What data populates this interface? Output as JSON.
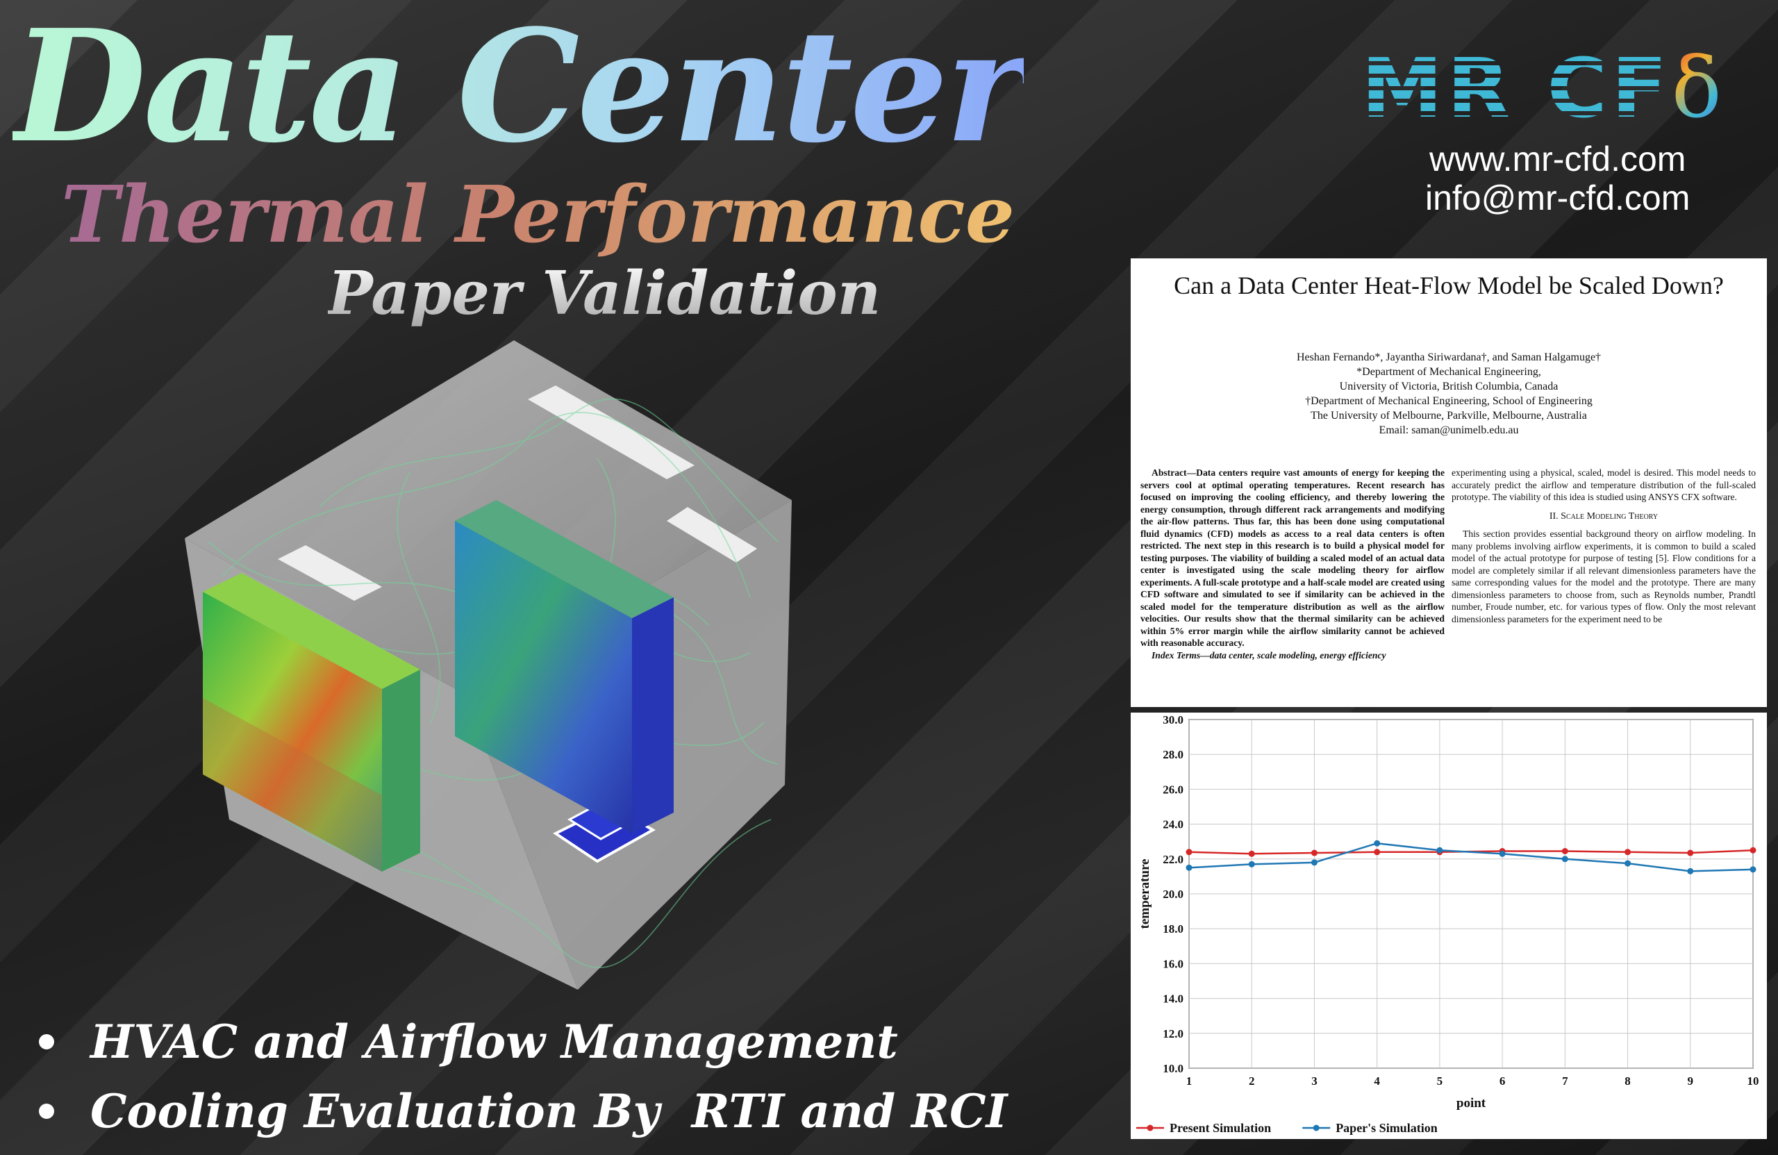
{
  "title": {
    "main": "Data Center",
    "sub": "Thermal Performance",
    "third": "Paper Validation"
  },
  "brand": {
    "logo_text": "MR CF",
    "logo_symbol": "δ",
    "website": "www.mr-cfd.com",
    "email": "info@mr-cfd.com"
  },
  "paper": {
    "title": "Can a Data Center Heat-Flow Model be Scaled Down?",
    "authors": "Heshan Fernando*, Jayantha Siriwardana†, and Saman Halgamuge†",
    "affil1": "*Department of Mechanical Engineering,",
    "affil2": "University of Victoria, British Columbia, Canada",
    "affil3": "†Department of Mechanical Engineering, School of Engineering",
    "affil4": "The University of Melbourne, Parkville, Melbourne, Australia",
    "email": "Email: saman@unimelb.edu.au",
    "abstract": "Abstract—Data centers require vast amounts of energy for keeping the servers cool at optimal operating temperatures. Recent research has focused on improving the cooling efficiency, and thereby lowering the energy consumption, through different rack arrangements and modifying the air-flow patterns. Thus far, this has been done using computational fluid dynamics (CFD) models as access to a real data centers is often restricted. The next step in this research is to build a physical model for testing purposes. The viability of building a scaled model of an actual data center is investigated using the scale modeling theory for airflow experiments. A full-scale prototype and a half-scale model are created using CFD software and simulated to see if similarity can be achieved in the scaled model for the temperature distribution as well as the airflow velocities. Our results show that the thermal similarity can be achieved within 5% error margin while the airflow similarity cannot be achieved with reasonable accuracy.",
    "index_terms": "Index Terms—data center, scale modeling, energy efficiency",
    "right_intro": "experimenting using a physical, scaled, model is desired. This model needs to accurately predict the airflow and temperature distribution of the full-scaled prototype. The viability of this idea is studied using ANSYS CFX software.",
    "section_heading": "II. Scale Modeling Theory",
    "section_body": "This section provides essential background theory on airflow modeling. In many problems involving airflow experiments, it is common to build a scaled model of the actual prototype for purpose of testing [5]. Flow conditions for a model are completely similar if all relevant dimensionless parameters have the same corresponding values for the model and the prototype. There are many dimensionless parameters to choose from, such as Reynolds number, Prandtl number, Froude number, etc. for various types of flow. Only the most relevant dimensionless parameters for the experiment need to be"
  },
  "bullets": [
    "HVAC and Airflow Management",
    "Cooling Evaluation By  RTI and RCI"
  ],
  "chart_data": {
    "type": "line",
    "x": [
      1,
      2,
      3,
      4,
      5,
      6,
      7,
      8,
      9,
      10
    ],
    "xlabel": "point",
    "ylabel": "temperature",
    "ylim": [
      10.0,
      30.0
    ],
    "yticks": [
      "10.0",
      "12.0",
      "14.0",
      "16.0",
      "18.0",
      "20.0",
      "22.0",
      "24.0",
      "26.0",
      "28.0",
      "30.0"
    ],
    "xticks": [
      "1",
      "2",
      "3",
      "4",
      "5",
      "6",
      "7",
      "8",
      "9",
      "10"
    ],
    "grid": true,
    "legend_position": "bottom-left",
    "series": [
      {
        "name": "Present Simulation",
        "color": "#d62728",
        "values": [
          22.4,
          22.3,
          22.35,
          22.4,
          22.4,
          22.45,
          22.45,
          22.4,
          22.35,
          22.5
        ]
      },
      {
        "name": "Paper's Simulation",
        "color": "#1f77b4",
        "values": [
          21.5,
          21.7,
          21.8,
          22.9,
          22.5,
          22.3,
          22.0,
          21.75,
          21.3,
          21.4
        ]
      }
    ]
  }
}
